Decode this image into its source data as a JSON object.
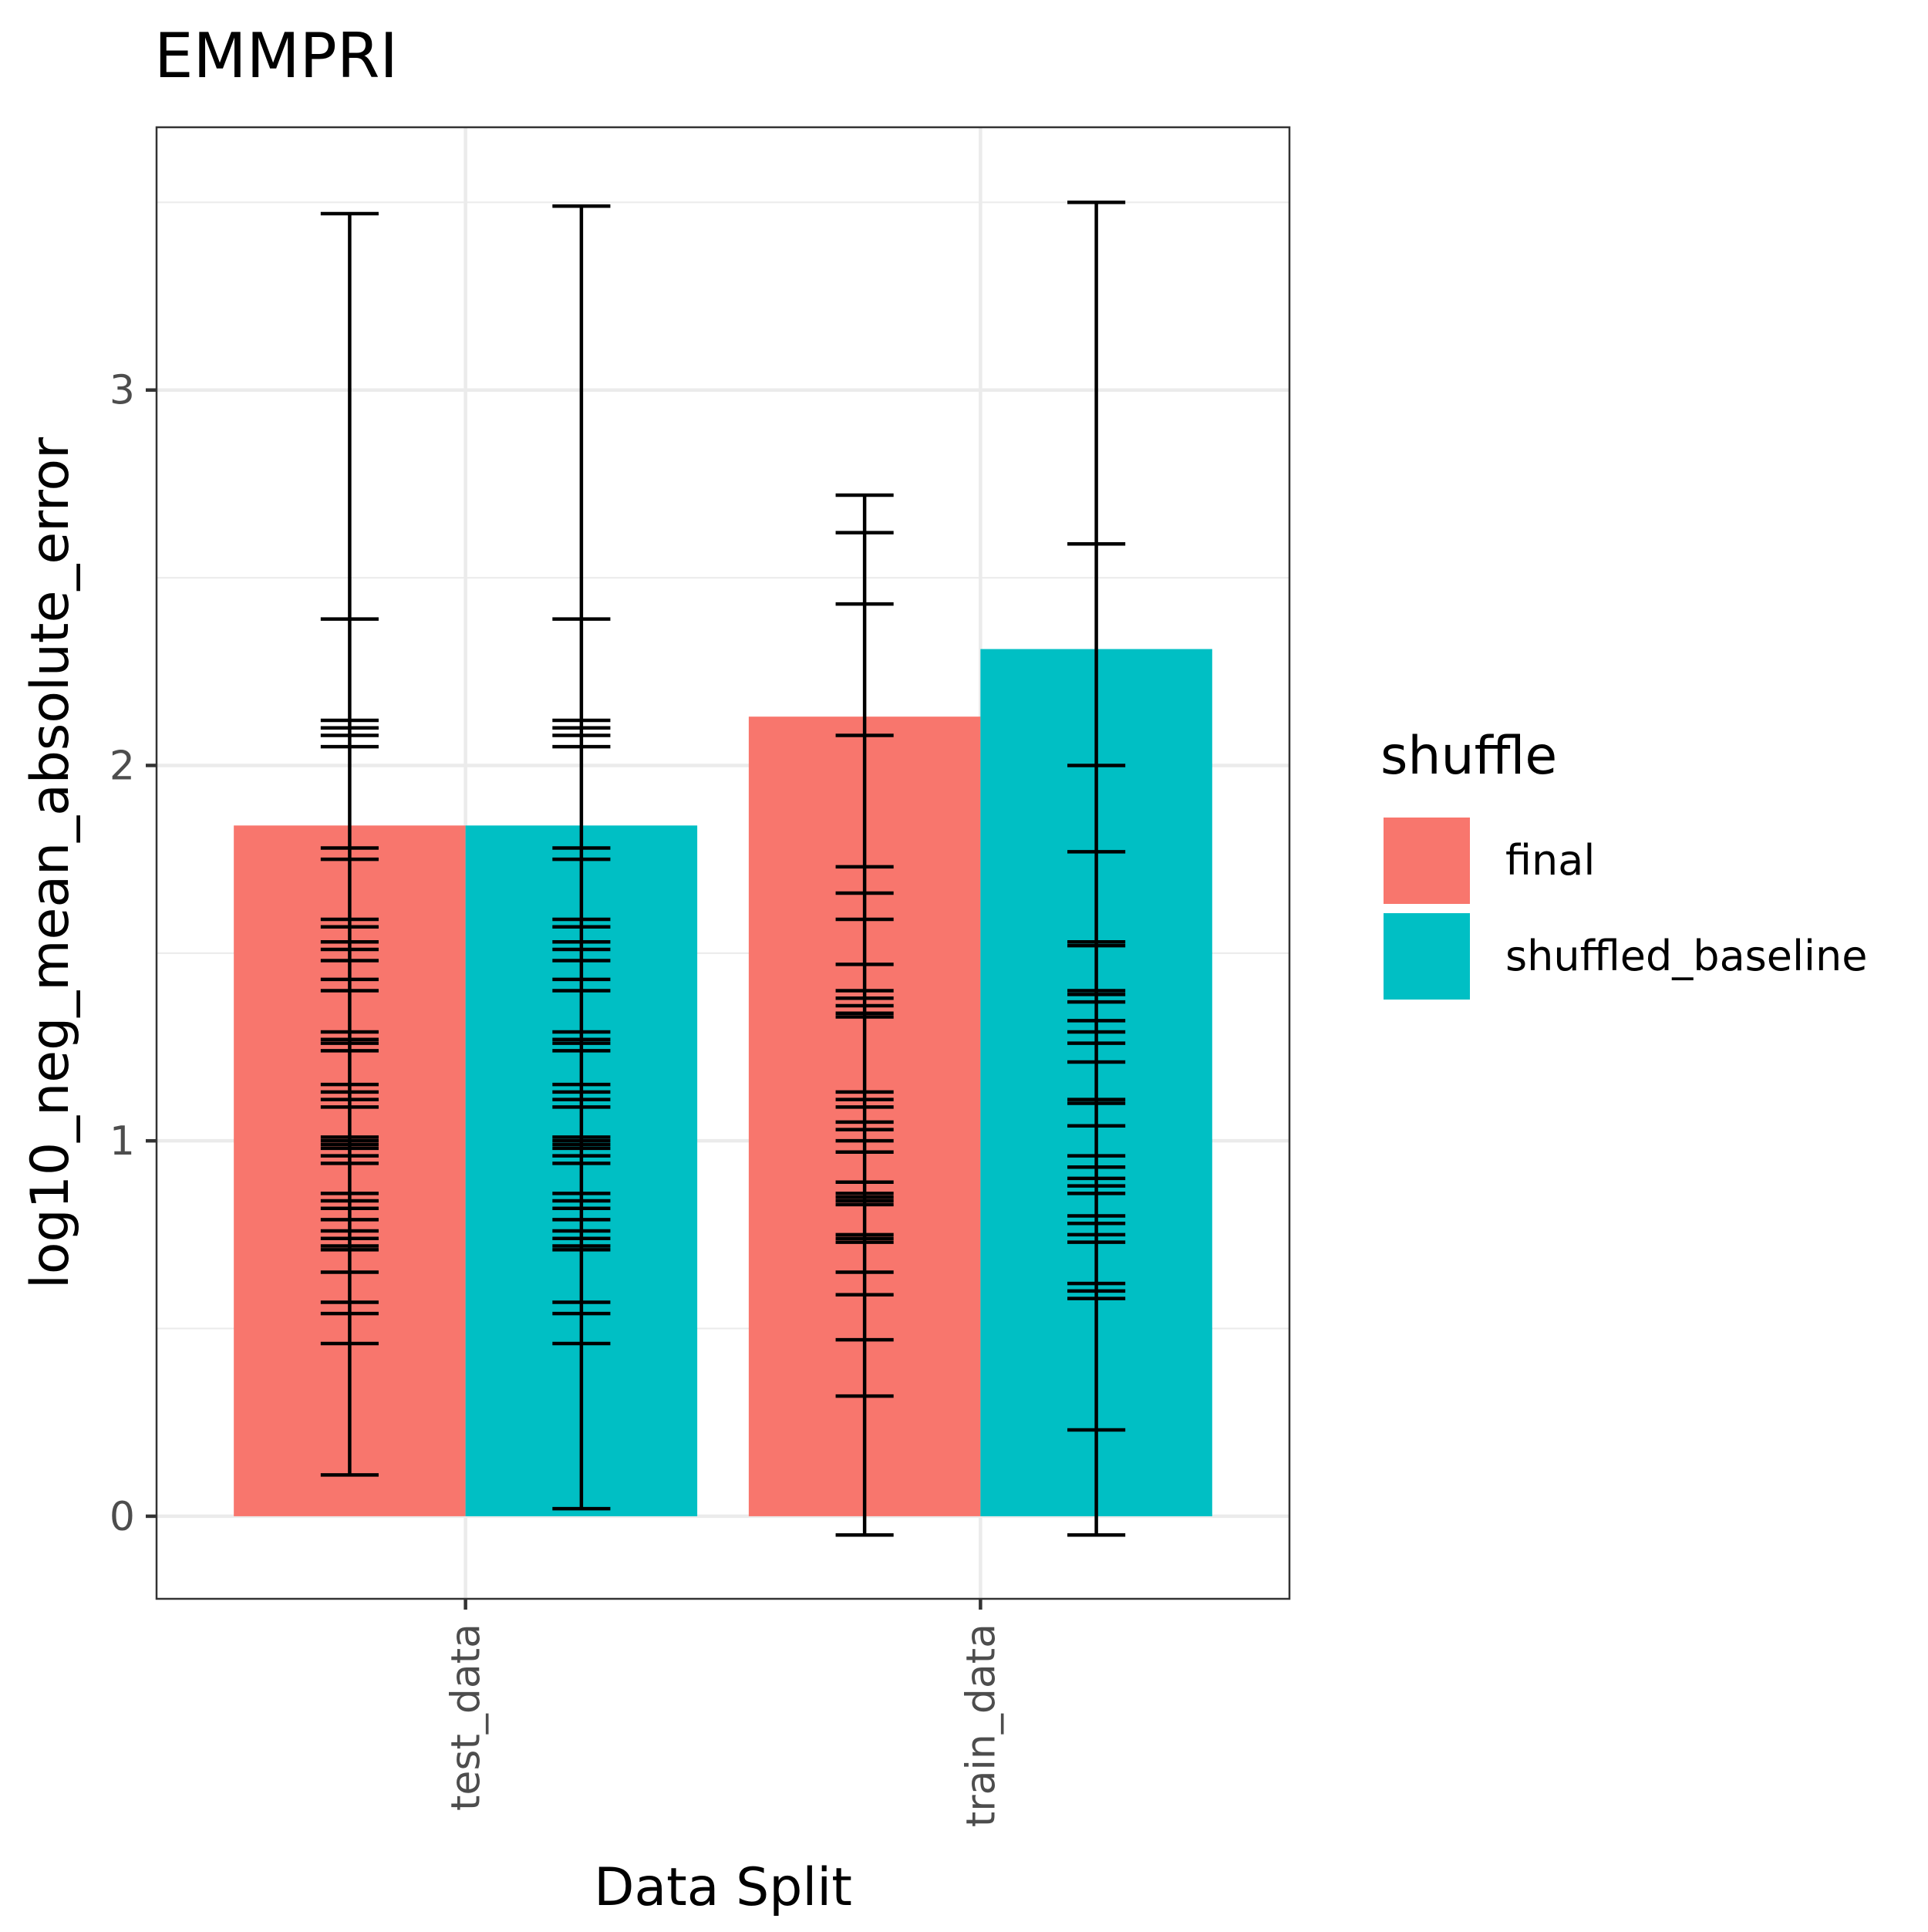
{
  "chart_data": {
    "type": "bar",
    "title": "EMMPRI",
    "xlabel": "Data Split",
    "ylabel": "log10_neg_mean_absolute_error",
    "categories": [
      "test_data",
      "train_data"
    ],
    "ylim": [
      -0.22,
      3.7
    ],
    "yticks": [
      0,
      1,
      2,
      3
    ],
    "grid": true,
    "legend": {
      "title": "shuffle",
      "placement": "right"
    },
    "series": [
      {
        "name": "final",
        "color": "#F8766D",
        "values": [
          1.84,
          2.13
        ],
        "errorbars": [
          [
            0.11,
            0.46,
            0.54,
            0.57,
            0.65,
            0.71,
            0.72,
            0.74,
            0.76,
            0.79,
            0.82,
            0.84,
            0.86,
            0.94,
            0.96,
            0.98,
            0.99,
            1.0,
            1.01,
            1.09,
            1.11,
            1.13,
            1.15,
            1.24,
            1.26,
            1.27,
            1.29,
            1.4,
            1.43,
            1.48,
            1.51,
            1.53,
            1.57,
            1.59,
            1.75,
            1.78,
            2.05,
            2.08,
            2.1,
            2.12,
            2.39,
            3.47
          ],
          [
            -0.05,
            0.32,
            0.47,
            0.59,
            0.65,
            0.73,
            0.74,
            0.75,
            0.83,
            0.84,
            0.85,
            0.86,
            0.89,
            0.97,
            1.0,
            1.03,
            1.05,
            1.09,
            1.11,
            1.13,
            1.33,
            1.34,
            1.36,
            1.38,
            1.4,
            1.47,
            1.59,
            1.66,
            1.73,
            2.08,
            2.43,
            2.62,
            2.72
          ]
        ]
      },
      {
        "name": "shuffled_baseline",
        "color": "#00BFC4",
        "values": [
          1.84,
          2.31
        ],
        "errorbars": [
          [
            0.02,
            0.46,
            0.54,
            0.57,
            0.71,
            0.72,
            0.74,
            0.76,
            0.79,
            0.82,
            0.84,
            0.86,
            0.94,
            0.96,
            0.98,
            0.99,
            1.0,
            1.01,
            1.09,
            1.11,
            1.13,
            1.15,
            1.24,
            1.26,
            1.27,
            1.29,
            1.4,
            1.43,
            1.48,
            1.51,
            1.53,
            1.57,
            1.59,
            1.75,
            1.78,
            2.05,
            2.08,
            2.1,
            2.12,
            2.39,
            3.49
          ],
          [
            -0.05,
            0.23,
            0.58,
            0.6,
            0.62,
            0.73,
            0.75,
            0.78,
            0.8,
            0.86,
            0.88,
            0.9,
            0.93,
            0.96,
            1.04,
            1.1,
            1.11,
            1.21,
            1.26,
            1.29,
            1.32,
            1.37,
            1.39,
            1.4,
            1.52,
            1.53,
            1.77,
            2.0,
            2.59,
            3.5
          ]
        ]
      }
    ]
  }
}
